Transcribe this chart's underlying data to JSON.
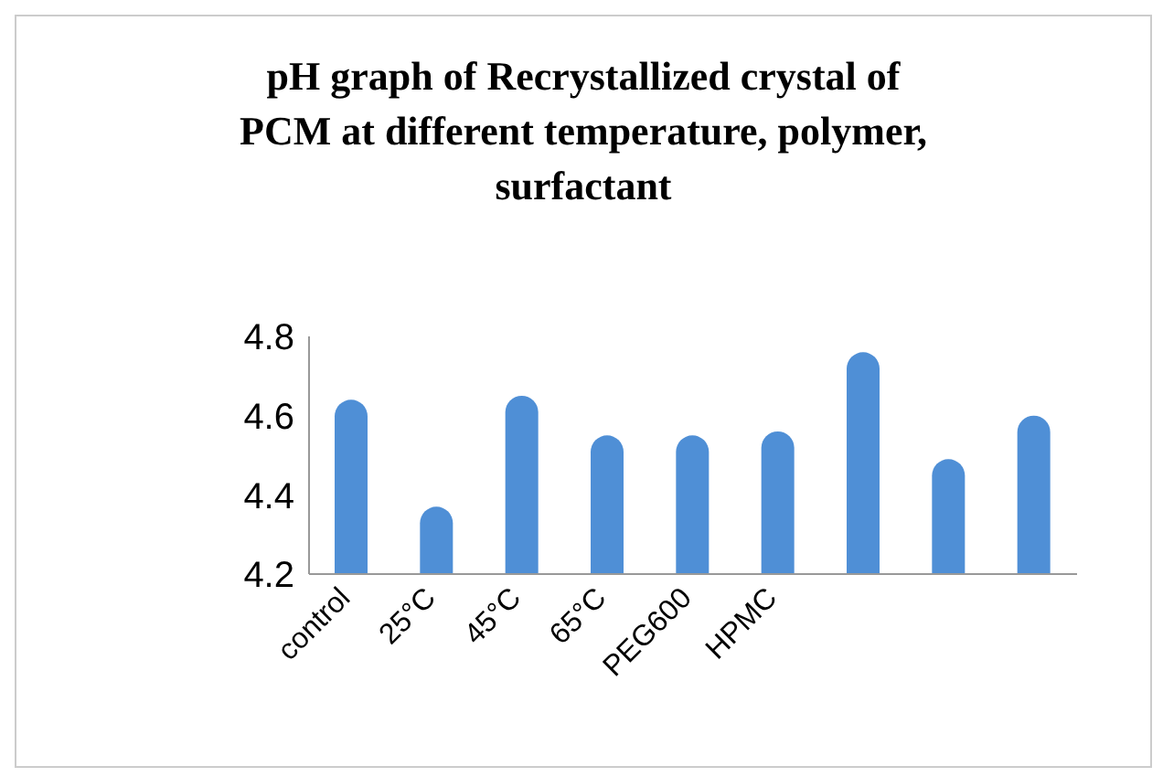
{
  "chart_data": {
    "type": "bar",
    "title": "pH graph of Recrystallized crystal of PCM at different temperature, polymer, surfactant",
    "categories": [
      "control",
      "25°C",
      "45°C",
      "65°C",
      "PEG600",
      "HPMC",
      null,
      null,
      null
    ],
    "values": [
      4.64,
      4.37,
      4.65,
      4.55,
      4.55,
      4.56,
      4.76,
      4.49,
      4.6
    ],
    "color": "#4f8fd6",
    "ylim": [
      4.2,
      4.8
    ],
    "yticks": [
      4.2,
      4.4,
      4.6,
      4.8
    ],
    "grid": false,
    "legend": false
  }
}
